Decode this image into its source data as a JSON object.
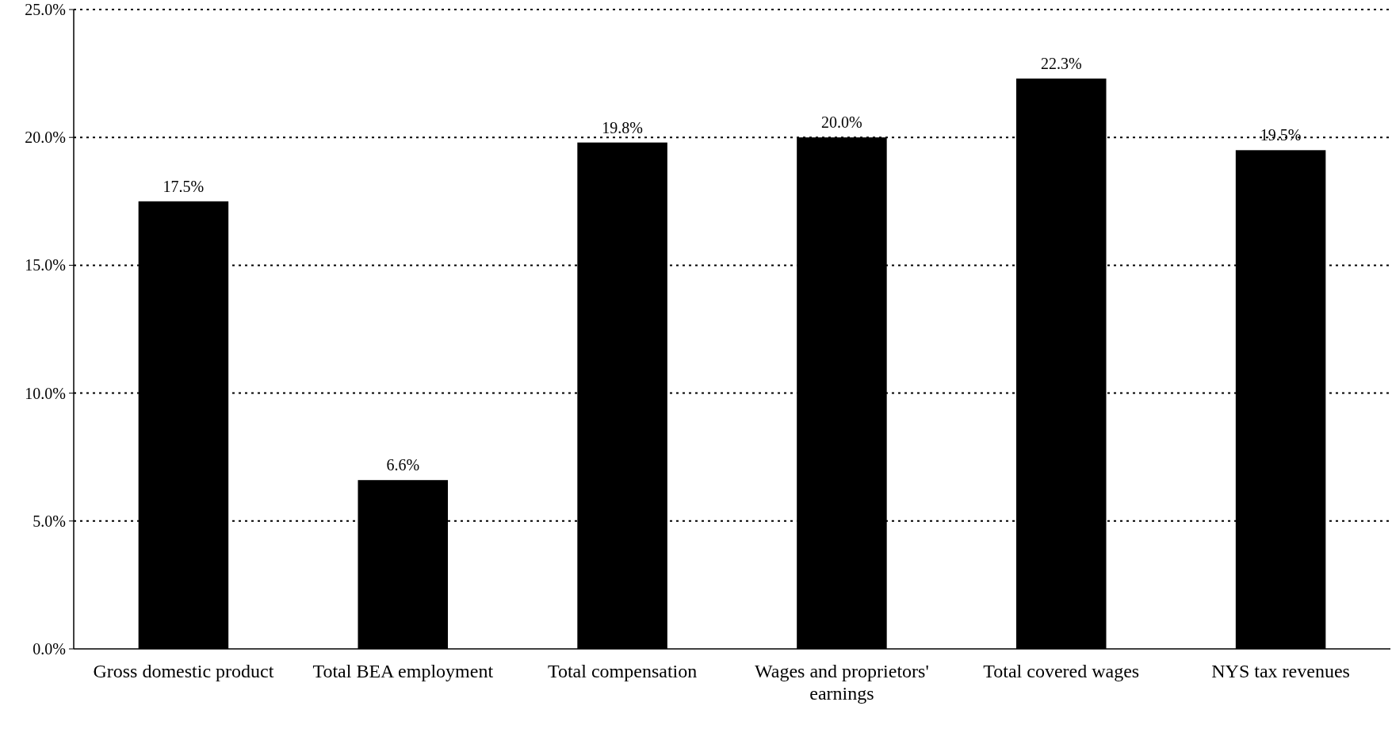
{
  "chart_data": {
    "type": "bar",
    "categories": [
      "Gross domestic product",
      "Total BEA employment",
      "Total compensation",
      "Wages and proprietors' earnings",
      "Total covered wages",
      "NYS tax revenues"
    ],
    "values": [
      17.5,
      6.6,
      19.8,
      20.0,
      22.3,
      19.5
    ],
    "value_labels": [
      "17.5%",
      "6.6%",
      "19.8%",
      "20.0%",
      "22.3%",
      "19.5%"
    ],
    "color": "#000000",
    "ylim": [
      0,
      25
    ],
    "yticks": [
      {
        "value": 0,
        "label": "0.0%"
      },
      {
        "value": 5,
        "label": "5.0%"
      },
      {
        "value": 10,
        "label": "10.0%"
      },
      {
        "value": 15,
        "label": "15.0%"
      },
      {
        "value": 20,
        "label": "20.0%"
      },
      {
        "value": 25,
        "label": "25.0%"
      }
    ],
    "grid": "y",
    "line_style": "dotted"
  }
}
